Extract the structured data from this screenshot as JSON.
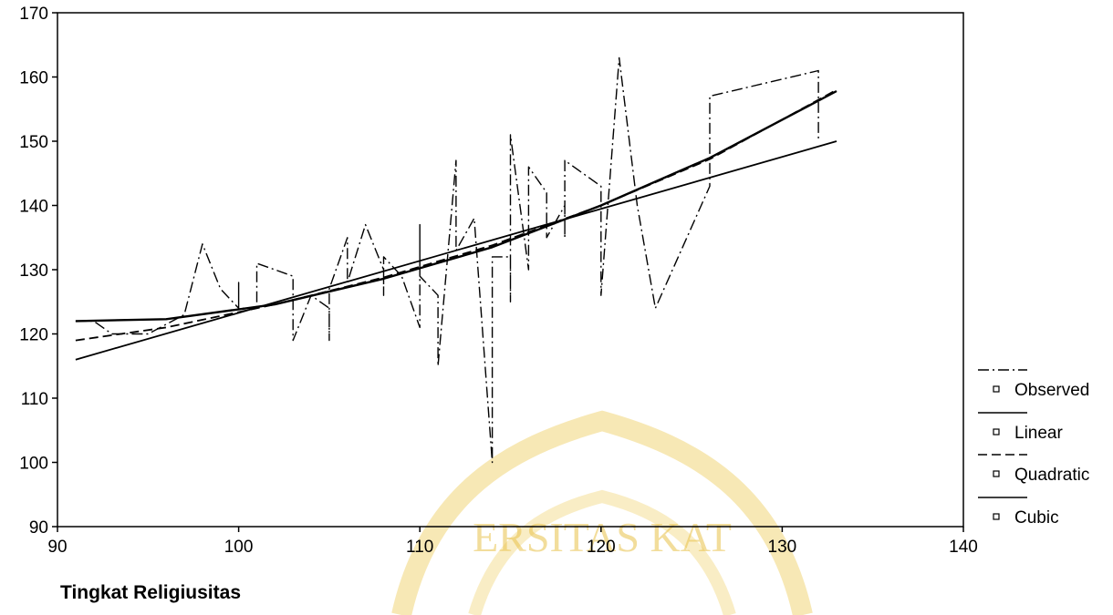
{
  "chart_data": {
    "type": "line",
    "xlabel": "Tingkat Religiusitas",
    "ylabel": "",
    "xlim": [
      90,
      140
    ],
    "ylim": [
      90,
      170
    ],
    "x_ticks": [
      90,
      100,
      110,
      120,
      130,
      140
    ],
    "y_ticks": [
      90,
      100,
      110,
      120,
      130,
      140,
      150,
      160,
      170
    ],
    "legend_position": "right",
    "series": [
      {
        "name": "Observed",
        "style": "dash-dot",
        "points": [
          [
            91,
            122
          ],
          [
            92,
            122
          ],
          [
            93,
            120
          ],
          [
            95,
            120
          ],
          [
            97,
            123
          ],
          [
            98,
            134
          ],
          [
            99,
            127
          ],
          [
            100,
            124
          ],
          [
            100,
            128
          ],
          [
            100,
            124
          ],
          [
            101,
            124
          ],
          [
            101,
            131
          ],
          [
            102,
            130
          ],
          [
            103,
            129
          ],
          [
            103,
            119
          ],
          [
            104,
            126
          ],
          [
            105,
            124
          ],
          [
            105,
            119
          ],
          [
            105,
            127
          ],
          [
            106,
            135
          ],
          [
            106,
            128
          ],
          [
            107,
            137
          ],
          [
            108,
            130
          ],
          [
            108,
            126
          ],
          [
            108,
            132
          ],
          [
            109,
            129
          ],
          [
            110,
            121
          ],
          [
            110,
            137
          ],
          [
            110,
            129
          ],
          [
            111,
            126
          ],
          [
            111,
            115
          ],
          [
            112,
            147
          ],
          [
            112,
            133
          ],
          [
            113,
            138
          ],
          [
            114,
            100
          ],
          [
            114,
            132
          ],
          [
            115,
            132
          ],
          [
            115,
            125
          ],
          [
            115,
            151
          ],
          [
            116,
            130
          ],
          [
            116,
            146
          ],
          [
            117,
            142
          ],
          [
            117,
            135
          ],
          [
            118,
            140
          ],
          [
            118,
            135
          ],
          [
            118,
            147
          ],
          [
            120,
            143
          ],
          [
            120,
            126
          ],
          [
            121,
            163
          ],
          [
            122,
            140
          ],
          [
            123,
            124
          ],
          [
            126,
            143
          ],
          [
            126,
            157
          ],
          [
            132,
            161
          ],
          [
            132,
            150
          ]
        ]
      },
      {
        "name": "Linear",
        "style": "solid",
        "points": [
          [
            91,
            116
          ],
          [
            133,
            150
          ]
        ]
      },
      {
        "name": "Quadratic",
        "style": "dashed",
        "points": [
          [
            91,
            119
          ],
          [
            96,
            121
          ],
          [
            102,
            124.6
          ],
          [
            108,
            128.8
          ],
          [
            114,
            133.8
          ],
          [
            120,
            140
          ],
          [
            126,
            147.2
          ],
          [
            133,
            158
          ]
        ]
      },
      {
        "name": "Cubic",
        "style": "solid",
        "points": [
          [
            91,
            122
          ],
          [
            96,
            122.3
          ],
          [
            102,
            124.6
          ],
          [
            108,
            128.6
          ],
          [
            114,
            133.5
          ],
          [
            120,
            140
          ],
          [
            126,
            147.4
          ],
          [
            133,
            157.8
          ]
        ]
      }
    ]
  },
  "watermark": {
    "text": "ERSITAS KAT",
    "color": "#e9c24a"
  }
}
